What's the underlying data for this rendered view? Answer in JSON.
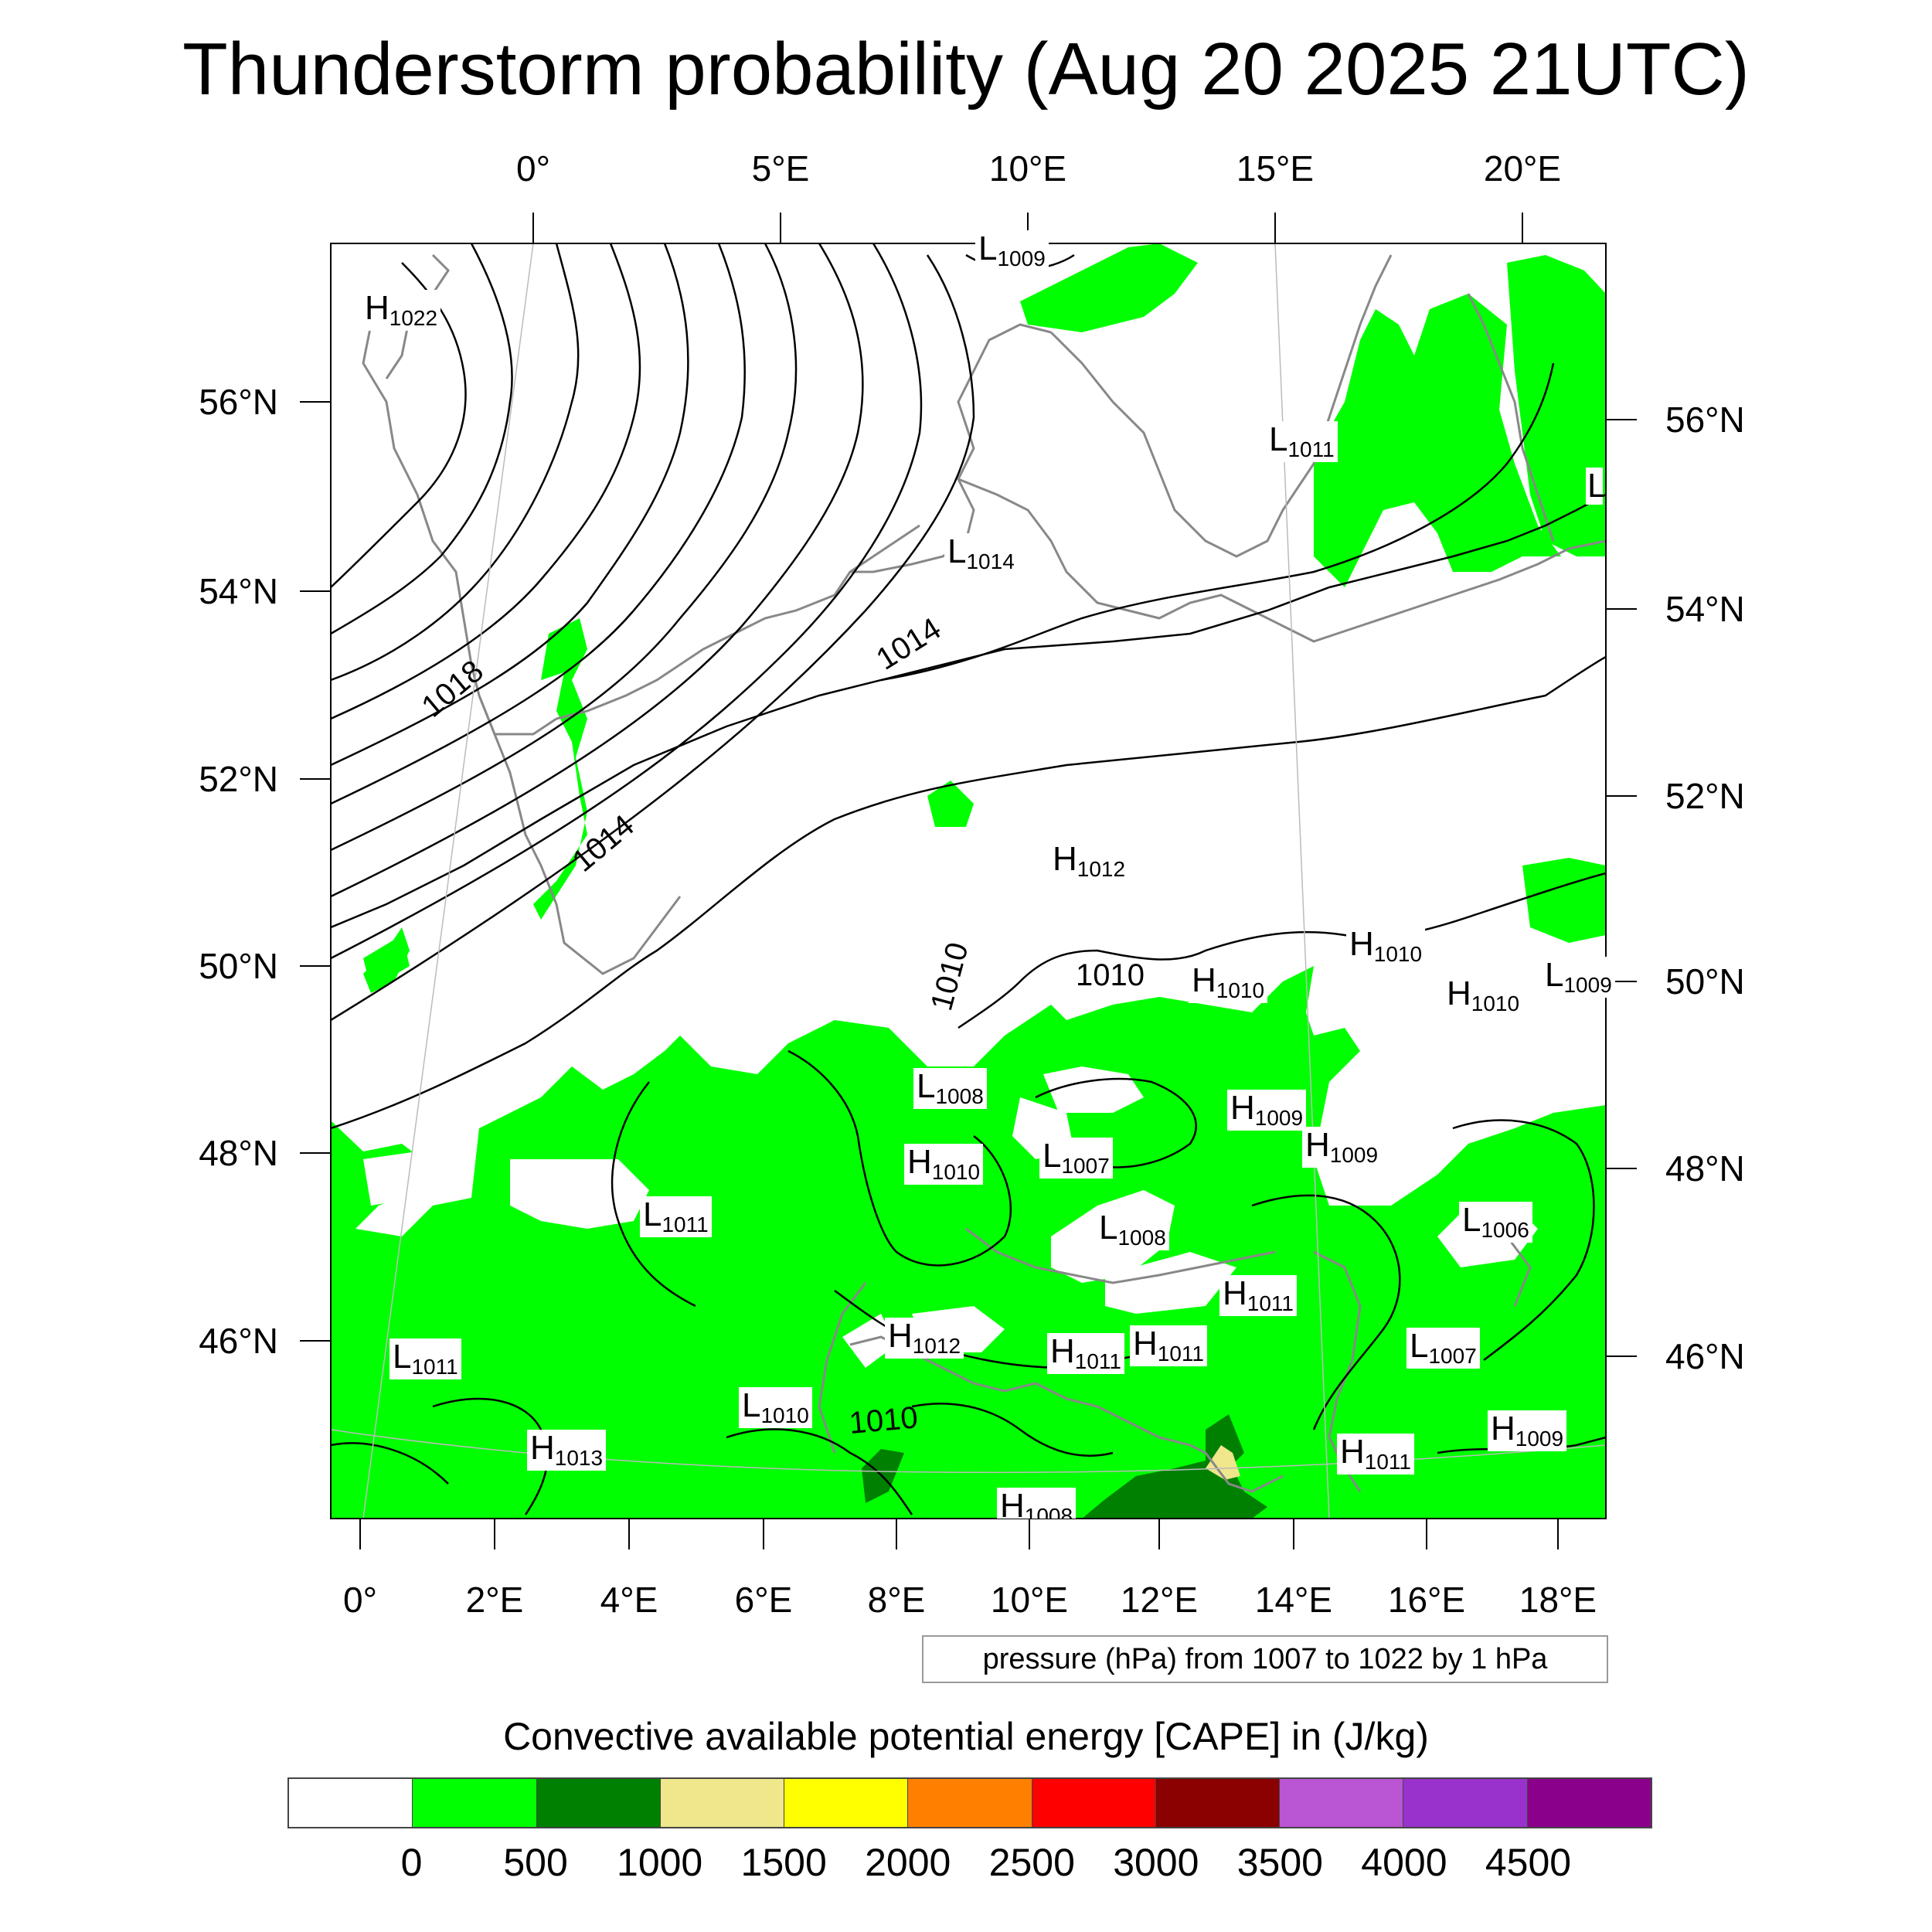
{
  "title": "Thunderstorm probability (Aug 20 2025 21UTC)",
  "top_lon_labels": [
    "0°",
    "5°E",
    "10°E",
    "15°E",
    "20°E"
  ],
  "bottom_lon_labels": [
    "0°",
    "2°E",
    "4°E",
    "6°E",
    "8°E",
    "10°E",
    "12°E",
    "14°E",
    "16°E",
    "18°E"
  ],
  "left_lat_labels": [
    "56°N",
    "54°N",
    "52°N",
    "50°N",
    "48°N",
    "46°N"
  ],
  "right_lat_labels": [
    "56°N",
    "54°N",
    "52°N",
    "50°N",
    "48°N",
    "46°N"
  ],
  "contour_info": "pressure (hPa) from 1007 to 1022 by 1 hPa",
  "legend_title": "Convective available potential energy [CAPE] in (J/kg)",
  "colorbar": {
    "levels": [
      "0",
      "500",
      "1000",
      "1500",
      "2000",
      "2500",
      "3000",
      "3500",
      "4000",
      "4500"
    ],
    "colors": [
      "#ffffff",
      "#00ff00",
      "#008000",
      "#f0e68c",
      "#ffff00",
      "#ff8000",
      "#ff0000",
      "#8b0000",
      "#ba55d3",
      "#9932cc",
      "#8b008b"
    ]
  },
  "pressure_centers": [
    {
      "type": "H",
      "value": "1022"
    },
    {
      "type": "L",
      "value": "1009"
    },
    {
      "type": "L",
      "value": "1011"
    },
    {
      "type": "L",
      "value": "1014"
    },
    {
      "type": "H",
      "value": "1012"
    },
    {
      "type": "H",
      "value": "1010"
    },
    {
      "type": "H",
      "value": "1010"
    },
    {
      "type": "H",
      "value": "1010"
    },
    {
      "type": "L",
      "value": "1009"
    },
    {
      "type": "L",
      "value": "1008"
    },
    {
      "type": "H",
      "value": "1009"
    },
    {
      "type": "H",
      "value": "1009"
    },
    {
      "type": "H",
      "value": "1010"
    },
    {
      "type": "L",
      "value": "1007"
    },
    {
      "type": "L",
      "value": "1011"
    },
    {
      "type": "L",
      "value": "1008"
    },
    {
      "type": "L",
      "value": "1006"
    },
    {
      "type": "H",
      "value": "1011"
    },
    {
      "type": "H",
      "value": "1012"
    },
    {
      "type": "L",
      "value": "1011"
    },
    {
      "type": "H",
      "value": "1011"
    },
    {
      "type": "H",
      "value": "1011"
    },
    {
      "type": "L",
      "value": "1007"
    },
    {
      "type": "L",
      "value": "1010"
    },
    {
      "type": "H",
      "value": "1009"
    },
    {
      "type": "H",
      "value": "1013"
    },
    {
      "type": "H",
      "value": "1011"
    },
    {
      "type": "H",
      "value": "1008"
    }
  ],
  "isobar_labels": [
    "1018",
    "1014",
    "1014",
    "1010",
    "1010",
    "1010"
  ],
  "cut_label": "L"
}
